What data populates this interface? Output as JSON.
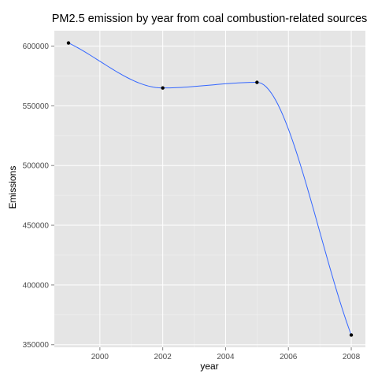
{
  "chart_data": {
    "type": "line",
    "title": "PM2.5 emission by year from coal combustion-related sources",
    "xlabel": "year",
    "ylabel": "Emissions",
    "x": [
      1999,
      2002,
      2005,
      2008
    ],
    "series": [
      {
        "values": [
          602624,
          564936,
          569655,
          358084
        ]
      }
    ],
    "xlim": [
      1998.55,
      2008.45
    ],
    "ylim": [
      347857,
      612851
    ],
    "x_ticks": [
      2000,
      2002,
      2004,
      2006,
      2008
    ],
    "x_tick_labels": [
      "2000",
      "2002",
      "2004",
      "2006",
      "2008"
    ],
    "y_ticks": [
      350000,
      400000,
      450000,
      500000,
      550000,
      600000
    ],
    "y_tick_labels": [
      "350000",
      "400000",
      "450000",
      "500000",
      "550000",
      "600000"
    ],
    "grid": true,
    "smoothed": true,
    "points": true,
    "line_color": "#3366ff",
    "point_color": "#000000",
    "panel_background": "#e5e5e5",
    "grid_color": "#ffffff"
  }
}
